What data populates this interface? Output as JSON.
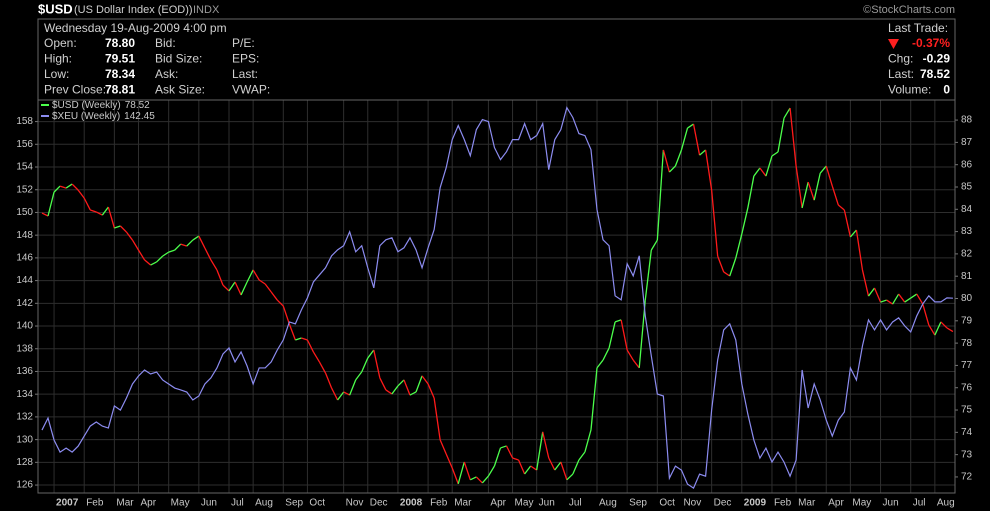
{
  "header": {
    "symbol": "$USD",
    "name": "(US Dollar Index (EOD))",
    "exchange": "INDX",
    "credit": "©StockCharts.com",
    "datetime": "Wednesday 19-Aug-2009 4:00 pm",
    "columns": [
      [
        {
          "label": "Open:",
          "value": "78.80"
        },
        {
          "label": "High:",
          "value": "79.51"
        },
        {
          "label": "Low:",
          "value": "78.34"
        },
        {
          "label": "Prev Close:",
          "value": "78.81"
        }
      ],
      [
        {
          "label": "Bid:"
        },
        {
          "label": "Bid Size:"
        },
        {
          "label": "Ask:"
        },
        {
          "label": "Ask Size:"
        }
      ],
      [
        {
          "label": "P/E:"
        },
        {
          "label": "EPS:"
        },
        {
          "label": "Last:"
        },
        {
          "label": "VWAP:"
        }
      ]
    ],
    "last_trade": {
      "label": "Last Trade:",
      "change_pct": "-0.37%",
      "rows": [
        {
          "label": "Chg:",
          "value": "-0.29"
        },
        {
          "label": "Last:",
          "value": "78.52"
        },
        {
          "label": "Volume:",
          "value": "0"
        }
      ]
    }
  },
  "chart_data": {
    "type": "line",
    "grid": true,
    "categories": [
      null,
      null,
      "2007",
      null,
      null,
      null,
      null,
      "Feb",
      null,
      null,
      null,
      null,
      "Mar",
      null,
      null,
      null,
      "Apr",
      null,
      null,
      null,
      null,
      "May",
      null,
      null,
      null,
      null,
      "Jun",
      null,
      null,
      null,
      null,
      "Jul",
      null,
      null,
      null,
      "Aug",
      null,
      null,
      null,
      null,
      "Sep",
      null,
      null,
      null,
      "Oct",
      null,
      null,
      null,
      null,
      null,
      "Nov",
      null,
      null,
      null,
      "Dec",
      null,
      null,
      null,
      null,
      "2008",
      null,
      null,
      null,
      null,
      "Feb",
      null,
      null,
      null,
      "Mar",
      null,
      null,
      null,
      null,
      null,
      "Apr",
      null,
      null,
      null,
      "May",
      null,
      null,
      null,
      "Jun",
      null,
      null,
      null,
      null,
      "Jul",
      null,
      null,
      null,
      null,
      "Aug",
      null,
      null,
      null,
      null,
      "Sep",
      null,
      null,
      null,
      null,
      "Oct",
      null,
      null,
      null,
      "Nov",
      null,
      null,
      null,
      null,
      "Dec",
      null,
      null,
      null,
      null,
      "2009",
      null,
      null,
      null,
      null,
      "Feb",
      null,
      null,
      null,
      "Mar",
      null,
      null,
      null,
      null,
      "Apr",
      null,
      null,
      null,
      "May",
      null,
      null,
      null,
      null,
      "Jun",
      null,
      null,
      null,
      null,
      "Jul",
      null,
      null,
      null,
      "Aug",
      null,
      null,
      null
    ],
    "ylim": [
      125.3,
      159.9
    ],
    "yticks": [
      126,
      128,
      130,
      132,
      134,
      136,
      138,
      140,
      142,
      144,
      146,
      148,
      150,
      152,
      154,
      156,
      158
    ],
    "y2lim": [
      71.28,
      88.9
    ],
    "y2ticks": [
      72,
      73,
      74,
      75,
      76,
      77,
      78,
      79,
      80,
      81,
      82,
      83,
      84,
      85,
      86,
      87,
      88
    ],
    "series": [
      {
        "name": "$USD (Weekly)",
        "axis": "y2",
        "up_color": "#4cff4c",
        "down_color": "#ff1a1a",
        "values": [
          83.83,
          83.7,
          84.77,
          85.04,
          84.95,
          85.13,
          84.86,
          84.5,
          83.97,
          83.88,
          83.74,
          84.1,
          83.16,
          83.25,
          82.98,
          82.62,
          82.17,
          81.73,
          81.5,
          81.64,
          81.9,
          82.08,
          82.17,
          82.44,
          82.35,
          82.62,
          82.8,
          82.26,
          81.73,
          81.28,
          80.6,
          80.34,
          80.74,
          80.16,
          80.74,
          81.28,
          80.83,
          80.65,
          80.29,
          79.93,
          79.66,
          78.86,
          78.14,
          78.23,
          78.14,
          77.6,
          77.15,
          76.66,
          75.99,
          75.45,
          75.81,
          75.67,
          76.35,
          76.71,
          77.33,
          77.69,
          76.44,
          75.9,
          75.72,
          76.08,
          76.35,
          75.67,
          75.81,
          76.53,
          76.17,
          75.54,
          73.66,
          73.03,
          72.4,
          71.69,
          72.67,
          71.87,
          72.0,
          71.73,
          72.04,
          72.49,
          73.3,
          73.39,
          72.85,
          72.76,
          72.13,
          72.49,
          72.31,
          74.02,
          72.85,
          72.31,
          72.67,
          71.87,
          72.13,
          72.76,
          73.12,
          74.11,
          76.89,
          77.24,
          77.78,
          78.95,
          79.04,
          77.69,
          77.24,
          76.89,
          79.93,
          82.17,
          82.62,
          86.66,
          85.67,
          85.94,
          86.66,
          87.64,
          87.82,
          86.43,
          86.66,
          84.86,
          81.9,
          81.19,
          81.01,
          81.81,
          82.89,
          84.06,
          85.49,
          85.85,
          85.49,
          86.39,
          86.57,
          88.09,
          88.54,
          85.94,
          84.06,
          85.22,
          84.41,
          85.62,
          85.94,
          85.04,
          84.19,
          83.97,
          82.76,
          83.07,
          81.28,
          80.11,
          80.47,
          79.84,
          79.93,
          79.75,
          80.2,
          79.84,
          80.02,
          80.2,
          79.75,
          78.81,
          78.36,
          78.95,
          78.68,
          78.52
        ]
      },
      {
        "name": "$XEU (Weekly)",
        "color": "#8c8cf0",
        "values": [
          130.84,
          131.9,
          129.96,
          128.9,
          129.25,
          128.9,
          129.43,
          130.31,
          131.19,
          131.55,
          131.19,
          131.02,
          132.96,
          132.6,
          133.66,
          134.9,
          135.6,
          136.13,
          135.78,
          135.95,
          135.25,
          134.9,
          134.54,
          134.37,
          134.19,
          133.49,
          133.84,
          134.9,
          135.43,
          136.31,
          137.54,
          138.07,
          136.84,
          137.72,
          136.48,
          134.9,
          136.31,
          136.31,
          136.84,
          137.89,
          138.78,
          140.36,
          140.19,
          141.42,
          142.48,
          143.89,
          144.51,
          145.13,
          146.18,
          146.71,
          147.07,
          148.3,
          146.54,
          147.07,
          145.13,
          143.36,
          147.07,
          147.59,
          147.77,
          146.54,
          146.89,
          147.77,
          146.71,
          145.13,
          146.89,
          148.48,
          152.18,
          153.94,
          156.41,
          157.65,
          156.41,
          155.0,
          157.29,
          158.18,
          158.0,
          155.71,
          154.65,
          155.35,
          156.41,
          156.41,
          157.82,
          156.41,
          156.77,
          157.82,
          153.77,
          156.41,
          157.29,
          159.23,
          158.35,
          156.94,
          156.77,
          155.53,
          150.24,
          147.59,
          147.07,
          142.66,
          142.3,
          145.48,
          144.42,
          146.18,
          140.89,
          137.37,
          134.01,
          133.84,
          126.61,
          127.67,
          127.31,
          126.08,
          125.73,
          126.96,
          126.78,
          132.6,
          137.01,
          139.66,
          140.19,
          138.78,
          134.9,
          132.25,
          129.96,
          128.37,
          129.25,
          128.02,
          128.9,
          128.02,
          126.78,
          128.2,
          136.13,
          132.78,
          134.9,
          133.49,
          131.72,
          130.31,
          131.72,
          132.43,
          136.31,
          135.25,
          138.25,
          140.54,
          139.66,
          140.54,
          139.66,
          140.36,
          140.72,
          140.01,
          139.48,
          140.89,
          141.95,
          142.66,
          142.13,
          142.13,
          142.48,
          142.45
        ]
      }
    ]
  }
}
